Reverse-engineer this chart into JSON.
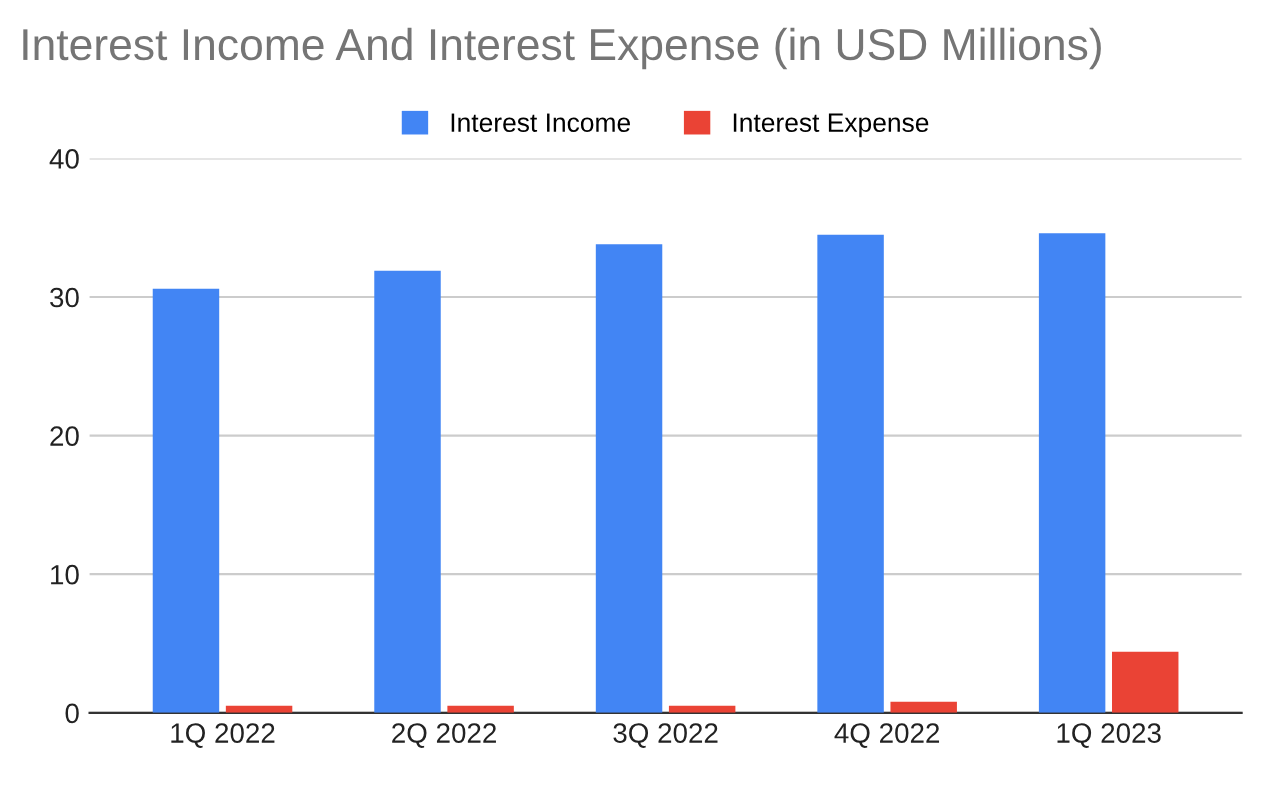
{
  "chart_data": {
    "type": "bar",
    "title": "Interest Income And Interest Expense (in USD Millions)",
    "categories": [
      "1Q 2022",
      "2Q 2022",
      "3Q 2022",
      "4Q 2022",
      "1Q 2023"
    ],
    "series": [
      {
        "name": "Interest Income",
        "color": "#4285f4",
        "values": [
          30.6,
          31.9,
          33.8,
          34.5,
          34.6
        ]
      },
      {
        "name": "Interest Expense",
        "color": "#ea4335",
        "values": [
          0.5,
          0.5,
          0.5,
          0.8,
          4.4
        ]
      }
    ],
    "ylim": [
      0,
      40
    ],
    "yticks": [
      0,
      10,
      20,
      30,
      40
    ],
    "grid": "y",
    "legend": "top"
  }
}
